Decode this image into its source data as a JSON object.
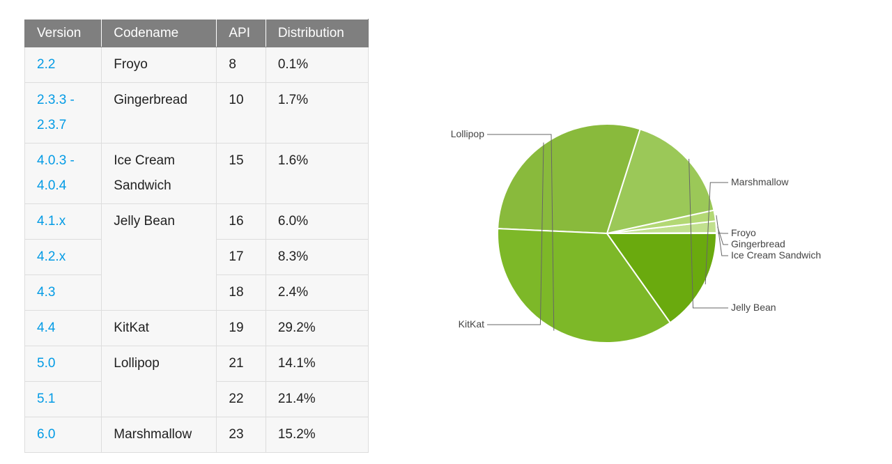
{
  "table": {
    "headers": [
      "Version",
      "Codename",
      "API",
      "Distribution"
    ],
    "rows": [
      {
        "version": "2.2",
        "codename": "Froyo",
        "api": "8",
        "distribution": "0.1%"
      },
      {
        "version": "2.3.3 - 2.3.7",
        "codename": "Gingerbread",
        "api": "10",
        "distribution": "1.7%"
      },
      {
        "version": "4.0.3 - 4.0.4",
        "codename": "Ice Cream Sandwich",
        "api": "15",
        "distribution": "1.6%"
      },
      {
        "version": "4.1.x",
        "codename": "Jelly Bean",
        "api": "16",
        "distribution": "6.0%"
      },
      {
        "version": "4.2.x",
        "codename": "",
        "api": "17",
        "distribution": "8.3%"
      },
      {
        "version": "4.3",
        "codename": "",
        "api": "18",
        "distribution": "2.4%"
      },
      {
        "version": "4.4",
        "codename": "KitKat",
        "api": "19",
        "distribution": "29.2%"
      },
      {
        "version": "5.0",
        "codename": "Lollipop",
        "api": "21",
        "distribution": "14.1%"
      },
      {
        "version": "5.1",
        "codename": "",
        "api": "22",
        "distribution": "21.4%"
      },
      {
        "version": "6.0",
        "codename": "Marshmallow",
        "api": "23",
        "distribution": "15.2%"
      }
    ]
  },
  "chart_data": {
    "type": "pie",
    "title": "",
    "slices": [
      {
        "name": "Froyo",
        "value": 0.1,
        "color": "#d0e8a8"
      },
      {
        "name": "Gingerbread",
        "value": 1.7,
        "color": "#c1e08e"
      },
      {
        "name": "Ice Cream Sandwich",
        "value": 1.6,
        "color": "#b3d874"
      },
      {
        "name": "Jelly Bean",
        "value": 16.7,
        "color": "#9bc858"
      },
      {
        "name": "KitKat",
        "value": 29.2,
        "color": "#89ba3c"
      },
      {
        "name": "Lollipop",
        "value": 35.5,
        "color": "#7db828"
      },
      {
        "name": "Marshmallow",
        "value": 15.2,
        "color": "#6aaa0e"
      }
    ],
    "colors": {
      "link": "#039be5",
      "header_bg": "#7f7f7f",
      "cell_bg": "#f7f7f7",
      "leader_line": "#666666"
    }
  }
}
